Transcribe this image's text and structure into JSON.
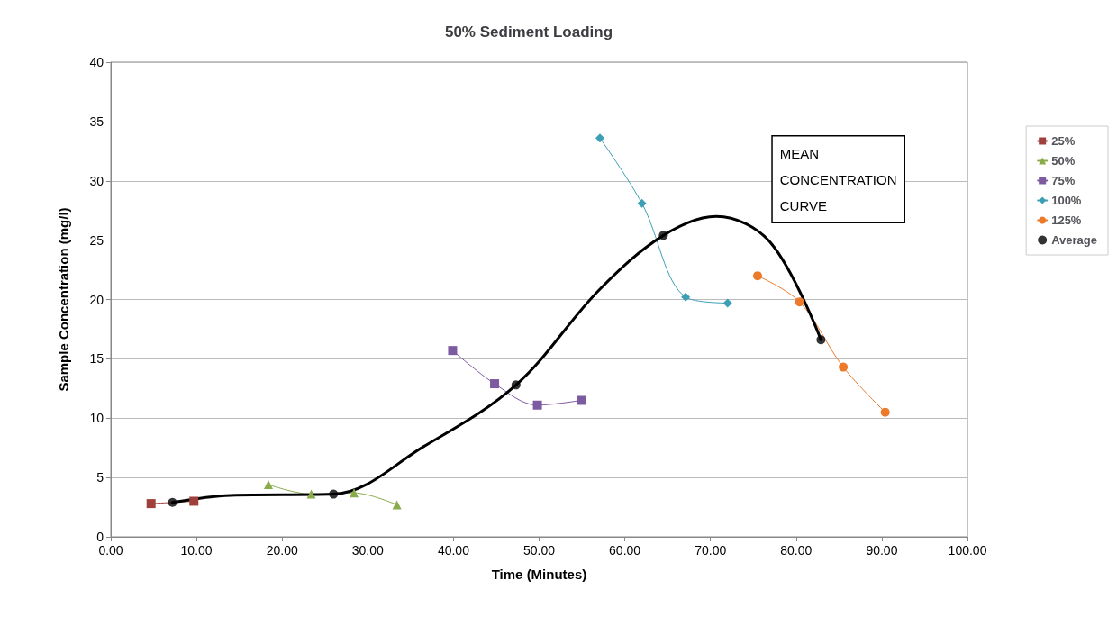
{
  "chart_data": {
    "type": "scatter",
    "title": "50% Sediment Loading",
    "xlabel": "Time (Minutes)",
    "ylabel": "Sample Concentration (mg/l)",
    "xlim": [
      0,
      100
    ],
    "xticks": [
      {
        "value": 0,
        "label": "0.00"
      },
      {
        "value": 10,
        "label": "10.00"
      },
      {
        "value": 20,
        "label": "20.00"
      },
      {
        "value": 30,
        "label": "30.00"
      },
      {
        "value": 40,
        "label": "40.00"
      },
      {
        "value": 50,
        "label": "50.00"
      },
      {
        "value": 60,
        "label": "60.00"
      },
      {
        "value": 70,
        "label": "70.00"
      },
      {
        "value": 80,
        "label": "80.00"
      },
      {
        "value": 90,
        "label": "90.00"
      },
      {
        "value": 100,
        "label": "100.00"
      }
    ],
    "ylim": [
      0,
      40
    ],
    "yticks": [
      0,
      5,
      10,
      15,
      20,
      25,
      30,
      35,
      40
    ],
    "grid": "y",
    "legend": "right",
    "annotations": [
      "MEAN CONCENTRATION CURVE"
    ],
    "series": [
      {
        "name": "25%",
        "type": "line",
        "marker": "square",
        "color": "#a0403c",
        "x": [
          4.7,
          9.7
        ],
        "values": [
          2.8,
          3.0
        ]
      },
      {
        "name": "50%",
        "type": "line",
        "marker": "triangle",
        "color": "#8aab4a",
        "x": [
          18.4,
          23.4,
          28.4,
          33.4
        ],
        "values": [
          4.4,
          3.6,
          3.7,
          2.7
        ]
      },
      {
        "name": "75%",
        "type": "line",
        "marker": "square",
        "color": "#7d5ba0",
        "x": [
          39.9,
          44.8,
          49.8,
          54.9
        ],
        "values": [
          15.7,
          12.9,
          11.1,
          11.5
        ]
      },
      {
        "name": "100%",
        "type": "line",
        "marker": "diamond",
        "color": "#3d9fb5",
        "x": [
          57.1,
          62.0,
          67.1,
          72.0
        ],
        "values": [
          33.6,
          28.1,
          20.2,
          19.7
        ]
      },
      {
        "name": "125%",
        "type": "line",
        "marker": "circle",
        "color": "#ec7a2a",
        "x": [
          75.5,
          80.4,
          85.5,
          90.4
        ],
        "values": [
          22.0,
          19.8,
          14.3,
          10.5
        ]
      },
      {
        "name": "Average",
        "marker": "circle",
        "color": "#000000",
        "x": [
          7.2,
          26.0,
          47.3,
          64.5,
          82.9
        ],
        "values": [
          2.9,
          3.6,
          12.8,
          25.4,
          16.6
        ]
      },
      {
        "type": "line",
        "marker": "none",
        "color": "#000000",
        "x": [
          7.2,
          14.0,
          26.0,
          36.5,
          47.3,
          57.0,
          64.5,
          70.7,
          77.0,
          82.9
        ],
        "values": [
          2.9,
          3.5,
          3.6,
          7.6,
          12.8,
          20.8,
          25.4,
          27.0,
          24.8,
          16.6
        ]
      }
    ]
  }
}
